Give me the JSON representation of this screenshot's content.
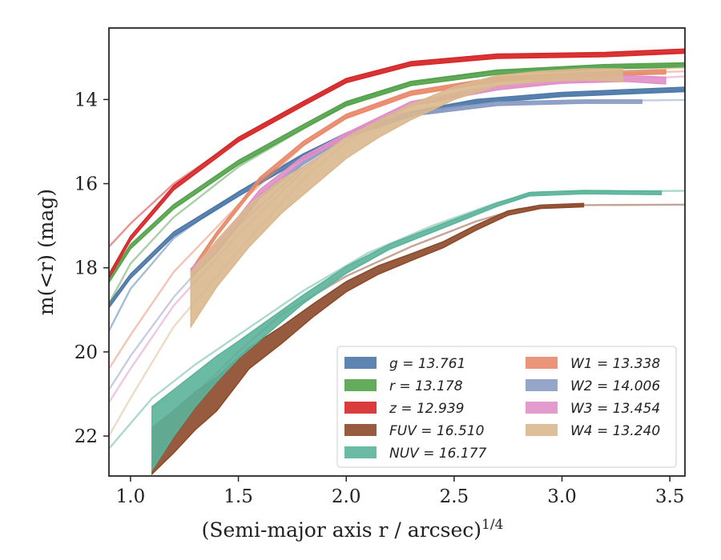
{
  "chart_data": {
    "type": "line",
    "xlabel": "(Semi-major axis r / arcsec)",
    "xlabel_sup": "1/4",
    "ylabel": "m(<r) (mag)",
    "xlim": [
      0.9,
      3.57
    ],
    "ylim": [
      12.3,
      22.95
    ],
    "y_inverted": true,
    "xticks": [
      1.0,
      1.5,
      2.0,
      2.5,
      3.0,
      3.5
    ],
    "xtick_labels": [
      "1.0",
      "1.5",
      "2.0",
      "2.5",
      "3.0",
      "3.5"
    ],
    "yticks": [
      14,
      16,
      18,
      20,
      22
    ],
    "ytick_labels": [
      "14",
      "16",
      "18",
      "20",
      "22"
    ],
    "grid": false,
    "legend_position": "lower-right",
    "series": [
      {
        "name": "g",
        "legend": "g = 13.761",
        "color": "#4c78a8",
        "model": [
          [
            0.9,
            19.5
          ],
          [
            1.0,
            18.5
          ],
          [
            1.2,
            17.3
          ],
          [
            1.5,
            16.2
          ],
          [
            1.8,
            15.3
          ],
          [
            2.0,
            14.8
          ],
          [
            2.2,
            14.4
          ],
          [
            2.5,
            14.1
          ],
          [
            3.0,
            13.88
          ],
          [
            3.57,
            13.77
          ]
        ],
        "data": [
          [
            0.9,
            18.9
          ],
          [
            1.0,
            18.2
          ],
          [
            1.2,
            17.2
          ],
          [
            1.5,
            16.25
          ],
          [
            1.8,
            15.35
          ],
          [
            2.0,
            14.85
          ],
          [
            2.3,
            14.35
          ],
          [
            2.6,
            14.05
          ],
          [
            3.0,
            13.88
          ],
          [
            3.57,
            13.76
          ]
        ],
        "band": 0.05
      },
      {
        "name": "r",
        "legend": "r = 13.178",
        "color": "#54a24b",
        "model": [
          [
            0.9,
            18.85
          ],
          [
            1.0,
            17.9
          ],
          [
            1.2,
            16.8
          ],
          [
            1.5,
            15.6
          ],
          [
            1.8,
            14.7
          ],
          [
            2.0,
            14.1
          ],
          [
            2.3,
            13.6
          ],
          [
            2.7,
            13.32
          ],
          [
            3.2,
            13.22
          ],
          [
            3.57,
            13.18
          ]
        ],
        "data": [
          [
            0.9,
            18.3
          ],
          [
            1.0,
            17.5
          ],
          [
            1.2,
            16.55
          ],
          [
            1.5,
            15.5
          ],
          [
            1.8,
            14.65
          ],
          [
            2.0,
            14.1
          ],
          [
            2.3,
            13.62
          ],
          [
            2.7,
            13.35
          ],
          [
            3.2,
            13.22
          ],
          [
            3.57,
            13.18
          ]
        ],
        "band": 0.05
      },
      {
        "name": "z",
        "legend": "z = 12.939",
        "color": "#d62728",
        "model": [
          [
            0.9,
            17.5
          ],
          [
            1.0,
            16.95
          ],
          [
            1.2,
            16.0
          ],
          [
            1.5,
            14.95
          ],
          [
            1.8,
            14.1
          ],
          [
            2.0,
            13.55
          ],
          [
            2.3,
            13.15
          ],
          [
            2.7,
            12.97
          ],
          [
            3.2,
            12.92
          ],
          [
            3.57,
            12.88
          ]
        ],
        "data": [
          [
            0.9,
            18.2
          ],
          [
            1.0,
            17.3
          ],
          [
            1.2,
            16.1
          ],
          [
            1.5,
            14.95
          ],
          [
            1.8,
            14.1
          ],
          [
            2.0,
            13.55
          ],
          [
            2.3,
            13.15
          ],
          [
            2.7,
            12.97
          ],
          [
            3.2,
            12.93
          ],
          [
            3.57,
            12.85
          ]
        ],
        "band": 0.05
      },
      {
        "name": "FUV",
        "legend": "FUV = 16.510",
        "color": "#8c4a2a",
        "model": [
          [
            1.1,
            22.0
          ],
          [
            1.3,
            21.0
          ],
          [
            1.5,
            20.0
          ],
          [
            1.7,
            19.1
          ],
          [
            2.0,
            18.2
          ],
          [
            2.3,
            17.5
          ],
          [
            2.6,
            16.9
          ],
          [
            2.8,
            16.6
          ],
          [
            3.1,
            16.51
          ],
          [
            3.57,
            16.5
          ]
        ],
        "data": [
          [
            1.1,
            22.35
          ],
          [
            1.2,
            21.9
          ],
          [
            1.3,
            21.4
          ],
          [
            1.4,
            21.0
          ],
          [
            1.55,
            20.15
          ],
          [
            1.7,
            19.6
          ],
          [
            1.85,
            19.0
          ],
          [
            2.0,
            18.45
          ],
          [
            2.15,
            18.05
          ],
          [
            2.3,
            17.75
          ],
          [
            2.45,
            17.45
          ],
          [
            2.6,
            17.05
          ],
          [
            2.75,
            16.7
          ],
          [
            2.9,
            16.55
          ],
          [
            3.1,
            16.51
          ]
        ],
        "half_widths": [
          0.55,
          0.5,
          0.45,
          0.4,
          0.25,
          0.2,
          0.15,
          0.12,
          0.1,
          0.08,
          0.07,
          0.06,
          0.05,
          0.04,
          0.04
        ]
      },
      {
        "name": "NUV",
        "legend": "NUV = 16.177",
        "color": "#5bb39a",
        "model": [
          [
            0.9,
            22.3
          ],
          [
            1.1,
            21.1
          ],
          [
            1.3,
            20.3
          ],
          [
            1.5,
            19.6
          ],
          [
            1.8,
            18.55
          ],
          [
            2.1,
            17.65
          ],
          [
            2.4,
            17.0
          ],
          [
            2.7,
            16.45
          ],
          [
            2.9,
            16.2
          ],
          [
            3.57,
            16.17
          ]
        ],
        "data": [
          [
            1.1,
            22.05
          ],
          [
            1.2,
            21.45
          ],
          [
            1.3,
            20.9
          ],
          [
            1.4,
            20.4
          ],
          [
            1.5,
            19.95
          ],
          [
            1.65,
            19.35
          ],
          [
            1.8,
            18.75
          ],
          [
            2.0,
            18.05
          ],
          [
            2.2,
            17.5
          ],
          [
            2.5,
            16.9
          ],
          [
            2.7,
            16.5
          ],
          [
            2.85,
            16.25
          ],
          [
            3.1,
            16.2
          ],
          [
            3.46,
            16.22
          ]
        ],
        "half_widths": [
          0.75,
          0.55,
          0.4,
          0.3,
          0.2,
          0.15,
          0.1,
          0.08,
          0.06,
          0.05,
          0.04,
          0.04,
          0.04,
          0.04
        ]
      },
      {
        "name": "W1",
        "legend": "W1 = 13.338",
        "color": "#e8896a",
        "model": [
          [
            0.9,
            20.4
          ],
          [
            1.0,
            19.6
          ],
          [
            1.2,
            18.1
          ],
          [
            1.5,
            16.5
          ],
          [
            1.8,
            15.1
          ],
          [
            2.0,
            14.4
          ],
          [
            2.3,
            13.85
          ],
          [
            2.7,
            13.52
          ],
          [
            3.2,
            13.38
          ],
          [
            3.57,
            13.33
          ]
        ],
        "data": [
          [
            1.28,
            18.1
          ],
          [
            1.4,
            17.2
          ],
          [
            1.6,
            15.9
          ],
          [
            1.8,
            15.05
          ],
          [
            2.0,
            14.4
          ],
          [
            2.3,
            13.85
          ],
          [
            2.7,
            13.52
          ],
          [
            3.2,
            13.38
          ],
          [
            3.48,
            13.34
          ]
        ],
        "band": 0.05
      },
      {
        "name": "W2",
        "legend": "W2 = 14.006",
        "color": "#8b9cc4",
        "model": [
          [
            0.9,
            20.9
          ],
          [
            1.0,
            20.1
          ],
          [
            1.2,
            18.7
          ],
          [
            1.5,
            17.0
          ],
          [
            1.8,
            15.6
          ],
          [
            2.0,
            14.9
          ],
          [
            2.3,
            14.35
          ],
          [
            2.7,
            14.1
          ],
          [
            3.2,
            14.03
          ],
          [
            3.57,
            14.01
          ]
        ],
        "data": [
          [
            1.28,
            18.2
          ],
          [
            1.4,
            17.6
          ],
          [
            1.6,
            16.3
          ],
          [
            1.8,
            15.5
          ],
          [
            2.0,
            14.85
          ],
          [
            2.3,
            14.35
          ],
          [
            2.7,
            14.1
          ],
          [
            3.1,
            14.05
          ],
          [
            3.37,
            14.05
          ]
        ],
        "band": 0.04
      },
      {
        "name": "W3",
        "legend": "W3 = 13.454",
        "color": "#e08fc6",
        "model": [
          [
            0.9,
            21.2
          ],
          [
            1.0,
            20.4
          ],
          [
            1.2,
            18.9
          ],
          [
            1.5,
            17.2
          ],
          [
            1.8,
            15.7
          ],
          [
            2.0,
            14.85
          ],
          [
            2.3,
            14.1
          ],
          [
            2.7,
            13.7
          ],
          [
            3.2,
            13.55
          ],
          [
            3.57,
            13.45
          ]
        ],
        "data": [
          [
            1.28,
            18.1
          ],
          [
            1.4,
            17.5
          ],
          [
            1.6,
            16.2
          ],
          [
            1.8,
            15.4
          ],
          [
            2.0,
            14.85
          ],
          [
            2.3,
            14.1
          ],
          [
            2.7,
            13.72
          ],
          [
            3.0,
            13.55
          ],
          [
            3.3,
            13.5
          ],
          [
            3.48,
            13.55
          ]
        ],
        "half_widths": [
          0.08,
          0.07,
          0.06,
          0.05,
          0.05,
          0.05,
          0.05,
          0.06,
          0.07,
          0.08
        ]
      },
      {
        "name": "W4",
        "legend": "W4 = 13.240",
        "color": "#d9b88f",
        "model": [
          [
            0.9,
            22.0
          ],
          [
            1.0,
            21.1
          ],
          [
            1.2,
            19.4
          ],
          [
            1.5,
            17.6
          ],
          [
            1.8,
            15.9
          ],
          [
            2.0,
            15.0
          ],
          [
            2.3,
            14.1
          ],
          [
            2.7,
            13.6
          ],
          [
            3.2,
            13.35
          ],
          [
            3.57,
            13.24
          ]
        ],
        "data": [
          [
            1.28,
            18.75
          ],
          [
            1.4,
            17.9
          ],
          [
            1.55,
            17.0
          ],
          [
            1.7,
            16.3
          ],
          [
            1.85,
            15.75
          ],
          [
            2.0,
            15.15
          ],
          [
            2.15,
            14.7
          ],
          [
            2.3,
            14.3
          ],
          [
            2.5,
            13.85
          ],
          [
            2.7,
            13.55
          ],
          [
            2.9,
            13.45
          ],
          [
            3.1,
            13.4
          ],
          [
            3.28,
            13.42
          ]
        ],
        "half_widths": [
          0.65,
          0.55,
          0.5,
          0.4,
          0.3,
          0.25,
          0.2,
          0.18,
          0.15,
          0.12,
          0.12,
          0.13,
          0.15
        ]
      }
    ]
  }
}
